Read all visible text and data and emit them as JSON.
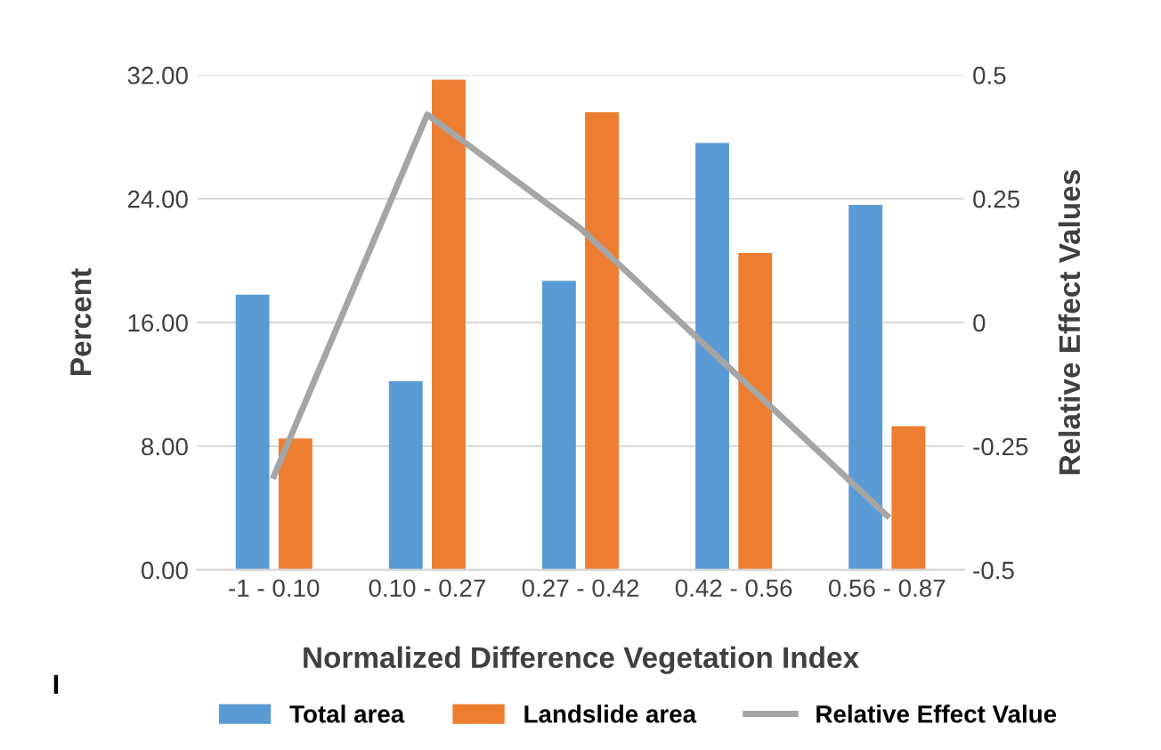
{
  "chart_data": {
    "type": "bar",
    "xlabel": "Normalized Difference Vegetation Index",
    "ylabel": "Percent",
    "y2label": "Relative Effect Values",
    "categories": [
      "-1 - 0.10",
      "0.10 - 0.27",
      "0.27 - 0.42",
      "0.42 - 0.56",
      "0.56 - 0.87"
    ],
    "series": [
      {
        "name": "Total area",
        "color": "#5b9bd5",
        "values": [
          17.8,
          12.2,
          18.7,
          27.6,
          23.6
        ]
      },
      {
        "name": "Landslide area",
        "color": "#ed7d31",
        "values": [
          8.5,
          31.7,
          29.6,
          20.5,
          9.3
        ]
      },
      {
        "name": "Relative Effect Value",
        "type": "line",
        "axis": "y2",
        "color": "#a5a5a5",
        "values": [
          -0.31,
          0.42,
          0.19,
          -0.1,
          -0.39
        ]
      }
    ],
    "ylim": [
      0,
      32
    ],
    "yticks": [
      {
        "value": 0,
        "label": "0.00"
      },
      {
        "value": 8,
        "label": "8.00"
      },
      {
        "value": 16,
        "label": "16.00"
      },
      {
        "value": 24,
        "label": "24.00"
      },
      {
        "value": 32,
        "label": "32.00"
      }
    ],
    "y2lim": [
      -0.5,
      0.5
    ],
    "y2ticks": [
      {
        "value": -0.5,
        "label": "-0.5"
      },
      {
        "value": -0.25,
        "label": "-0.25"
      },
      0,
      {
        "value": 0.25,
        "label": "0.25"
      },
      0.5
    ],
    "grid": "y",
    "legend": "bottom",
    "marker": "none",
    "line_style": "solid",
    "annotations": [
      "I"
    ]
  }
}
